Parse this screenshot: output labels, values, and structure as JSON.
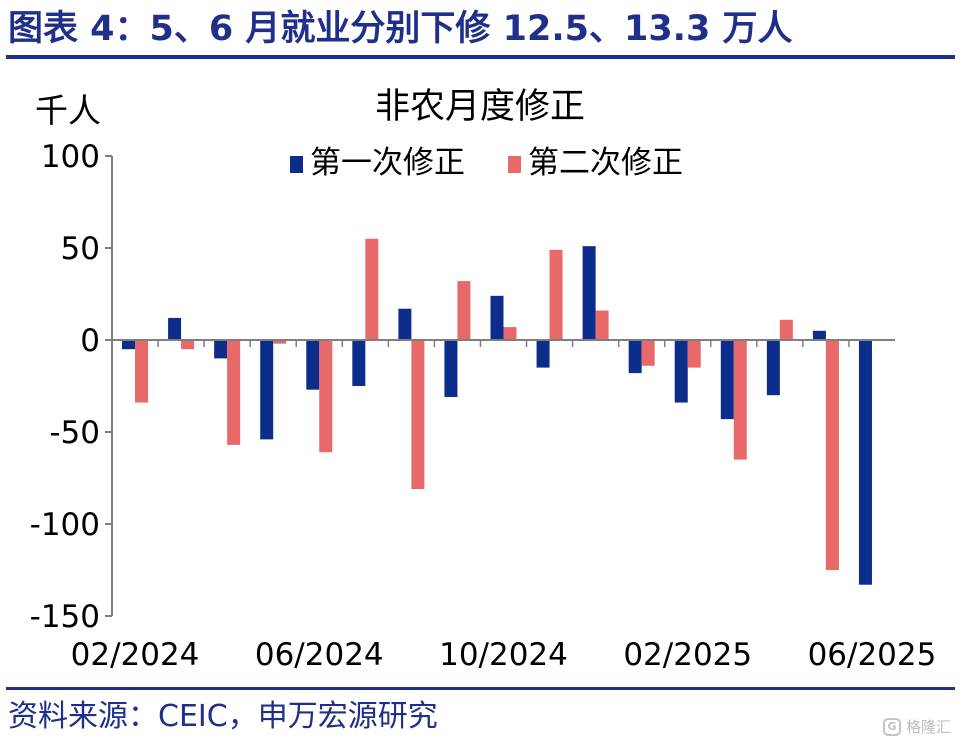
{
  "header": {
    "title": "图表 4：5、6 月就业分别下修 12.5、13.3 万人"
  },
  "footer": {
    "source": "资料来源：CEIC，申万宏源研究",
    "watermark": "格隆汇"
  },
  "chart_data": {
    "type": "bar",
    "title": "非农月度修正",
    "ylabel": "千人",
    "xlabel": "",
    "ylim": [
      -150,
      100
    ],
    "yticks": [
      100,
      50,
      0,
      -50,
      -100,
      -150
    ],
    "xtick_labels": [
      "02/2024",
      "06/2024",
      "10/2024",
      "02/2025",
      "06/2025"
    ],
    "legend_position": "top",
    "grid": false,
    "categories": [
      "02/2024",
      "03/2024",
      "04/2024",
      "05/2024",
      "06/2024",
      "07/2024",
      "08/2024",
      "09/2024",
      "10/2024",
      "11/2024",
      "12/2024",
      "01/2025",
      "02/2025",
      "03/2025",
      "04/2025",
      "05/2025",
      "06/2025"
    ],
    "series": [
      {
        "name": "第一次修正",
        "color": "#0d2d8c",
        "values": [
          -5,
          12,
          -10,
          -54,
          -27,
          -25,
          17,
          -31,
          24,
          -15,
          51,
          -18,
          -34,
          -43,
          -30,
          5,
          -133
        ]
      },
      {
        "name": "第二次修正",
        "color": "#e8696a",
        "values": [
          -34,
          -5,
          -57,
          -2,
          -61,
          55,
          -81,
          32,
          7,
          49,
          16,
          -14,
          -15,
          -65,
          11,
          -125,
          null
        ]
      }
    ]
  }
}
